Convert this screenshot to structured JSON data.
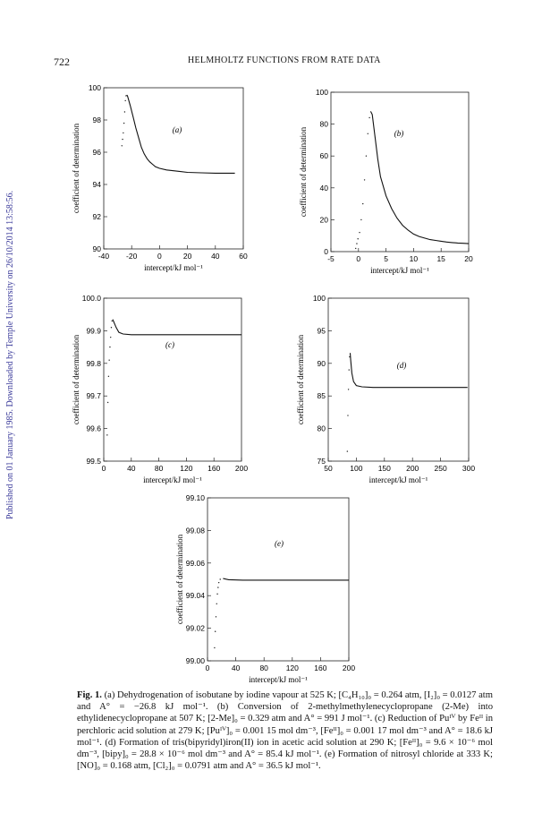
{
  "header": {
    "page_number": "722",
    "running_title": "HELMHOLTZ FUNCTIONS FROM RATE DATA"
  },
  "side_stamp": "Published on 01 January 1985. Downloaded by Temple University on 26/10/2014 13:58:56.",
  "chart_data": [
    {
      "type": "line",
      "panel_label": "(a)",
      "xlabel": "intercept/kJ mol⁻¹",
      "ylabel": "coefficient of determination",
      "xlim": [
        -40,
        60
      ],
      "ylim": [
        90,
        100
      ],
      "x_ticks": [
        "-40",
        "-20",
        "0",
        "20",
        "40",
        "60"
      ],
      "y_ticks": [
        "90",
        "92",
        "94",
        "96",
        "98",
        "100"
      ],
      "points": [
        [
          -27,
          96.4
        ],
        [
          -26.5,
          96.8
        ],
        [
          -26,
          97.2
        ],
        [
          -25.5,
          97.8
        ],
        [
          -25,
          98.5
        ],
        [
          -24.5,
          99.2
        ],
        [
          -24,
          99.5
        ],
        [
          -23.5,
          99.55
        ],
        [
          -23,
          99.5
        ],
        [
          -21,
          98.9
        ],
        [
          -19,
          98.2
        ],
        [
          -17,
          97.5
        ],
        [
          -15,
          96.9
        ],
        [
          -13,
          96.3
        ],
        [
          -11,
          95.9
        ],
        [
          -9,
          95.6
        ],
        [
          -7,
          95.4
        ],
        [
          -5,
          95.25
        ],
        [
          -3,
          95.1
        ],
        [
          0,
          95.0
        ],
        [
          5,
          94.9
        ],
        [
          10,
          94.85
        ],
        [
          15,
          94.8
        ],
        [
          20,
          94.75
        ],
        [
          30,
          94.72
        ],
        [
          40,
          94.7
        ],
        [
          50,
          94.7
        ],
        [
          54,
          94.7
        ]
      ]
    },
    {
      "type": "line",
      "panel_label": "(b)",
      "xlabel": "intercept/kJ mol⁻¹",
      "ylabel": "coefficient of determination",
      "xlim": [
        -5,
        20
      ],
      "ylim": [
        0,
        100
      ],
      "x_ticks": [
        "-5",
        "0",
        "5",
        "10",
        "15",
        "20"
      ],
      "y_ticks": [
        "0",
        "20",
        "40",
        "60",
        "80",
        "100"
      ],
      "points": [
        [
          -0.5,
          2
        ],
        [
          -0.3,
          5
        ],
        [
          -0.1,
          8
        ],
        [
          0.2,
          12
        ],
        [
          0.5,
          20
        ],
        [
          0.8,
          30
        ],
        [
          1.1,
          45
        ],
        [
          1.4,
          60
        ],
        [
          1.7,
          74
        ],
        [
          2.0,
          84
        ],
        [
          2.2,
          88
        ],
        [
          2.5,
          86
        ],
        [
          3,
          72
        ],
        [
          3.5,
          58
        ],
        [
          4,
          47
        ],
        [
          5,
          35
        ],
        [
          6,
          27
        ],
        [
          7,
          21
        ],
        [
          8,
          16.5
        ],
        [
          9,
          13.5
        ],
        [
          10,
          11
        ],
        [
          11,
          9.5
        ],
        [
          12,
          8.5
        ],
        [
          13,
          7.5
        ],
        [
          14,
          7
        ],
        [
          15,
          6.5
        ],
        [
          16,
          6
        ],
        [
          17,
          5.7
        ],
        [
          18,
          5.4
        ],
        [
          19,
          5.2
        ],
        [
          20,
          5
        ]
      ]
    },
    {
      "type": "line",
      "panel_label": "(c)",
      "xlabel": "intercept/kJ mol⁻¹",
      "ylabel": "coefficient of determination",
      "xlim": [
        0,
        200
      ],
      "ylim": [
        99.5,
        100.0
      ],
      "x_ticks": [
        "0",
        "40",
        "80",
        "120",
        "160",
        "200"
      ],
      "y_ticks": [
        "99.5",
        "99.6",
        "99.7",
        "99.8",
        "99.9",
        "100.0"
      ],
      "points": [
        [
          5,
          99.58
        ],
        [
          6,
          99.68
        ],
        [
          7,
          99.76
        ],
        [
          8,
          99.81
        ],
        [
          9,
          99.85
        ],
        [
          10,
          99.88
        ],
        [
          11,
          99.91
        ],
        [
          12,
          99.93
        ],
        [
          13,
          99.935
        ],
        [
          14,
          99.93
        ],
        [
          16,
          99.92
        ],
        [
          18,
          99.91
        ],
        [
          22,
          99.895
        ],
        [
          28,
          99.89
        ],
        [
          40,
          99.888
        ],
        [
          80,
          99.888
        ],
        [
          120,
          99.888
        ],
        [
          160,
          99.888
        ],
        [
          200,
          99.888
        ]
      ]
    },
    {
      "type": "line",
      "panel_label": "(d)",
      "xlabel": "intercept/kJ mol⁻¹",
      "ylabel": "coefficient of determination",
      "xlim": [
        50,
        300
      ],
      "ylim": [
        75,
        100
      ],
      "x_ticks": [
        "50",
        "100",
        "150",
        "200",
        "250",
        "300"
      ],
      "y_ticks": [
        "75",
        "80",
        "85",
        "90",
        "95",
        "100"
      ],
      "points": [
        [
          84,
          76.5
        ],
        [
          85,
          82
        ],
        [
          86,
          86
        ],
        [
          87,
          89
        ],
        [
          88,
          91
        ],
        [
          89,
          91.6
        ],
        [
          90,
          90.5
        ],
        [
          92,
          88.5
        ],
        [
          95,
          87.2
        ],
        [
          100,
          86.6
        ],
        [
          110,
          86.4
        ],
        [
          130,
          86.3
        ],
        [
          170,
          86.3
        ],
        [
          220,
          86.3
        ],
        [
          260,
          86.3
        ],
        [
          298,
          86.3
        ]
      ]
    },
    {
      "type": "line",
      "panel_label": "(e)",
      "xlabel": "intercept/kJ mol⁻¹",
      "ylabel": "coefficient of determination",
      "xlim": [
        0,
        200
      ],
      "ylim": [
        99.0,
        99.1
      ],
      "x_ticks": [
        "0",
        "40",
        "80",
        "120",
        "160",
        "200"
      ],
      "y_ticks": [
        "99.00",
        "99.02",
        "99.04",
        "99.06",
        "99.08",
        "99.10"
      ],
      "points": [
        [
          10,
          99.008
        ],
        [
          11,
          99.018
        ],
        [
          12,
          99.027
        ],
        [
          13,
          99.035
        ],
        [
          14,
          99.041
        ],
        [
          15,
          99.045
        ],
        [
          16,
          99.048
        ],
        [
          18,
          99.05
        ],
        [
          22,
          99.0505
        ],
        [
          30,
          99.0498
        ],
        [
          50,
          99.0495
        ],
        [
          100,
          99.0495
        ],
        [
          150,
          99.0495
        ],
        [
          200,
          99.0495
        ]
      ]
    }
  ],
  "caption": {
    "label": "Fig. 1.",
    "text": "(a) Dehydrogenation of isobutane by iodine vapour at 525 K; [C₄H₁₀]₀ = 0.264 atm, [I₂]₀ = 0.0127 atm and A° = −26.8 kJ mol⁻¹. (b) Conversion of 2-methylmethylenecyclopropane (2-Me) into ethylidenecyclopropane at 507 K; [2-Me]₀ = 0.329 atm and A° = 991 J mol⁻¹. (c) Reduction of Puᴵⱽ by Feᴵᴵ in perchloric acid solution at 279 K; [Puᴵⱽ]₀ = 0.001 15 mol dm⁻³, [Feᴵᴵ]₀ = 0.001 17 mol dm⁻³ and A° = 18.6 kJ mol⁻¹. (d) Formation of tris(bipyridyl)iron(II) ion in acetic acid solution at 290 K; [Feᴵᴵ]₀ = 9.6 × 10⁻⁶ mol dm⁻³, [bipy]₀ = 28.8 × 10⁻⁶ mol dm⁻³ and A° = 85.4 kJ mol⁻¹. (e) Formation of nitrosyl chloride at 333 K; [NO]₀ = 0.168 atm, [Cl₂]₀ = 0.0791 atm and A° = 36.5 kJ mol⁻¹."
  }
}
